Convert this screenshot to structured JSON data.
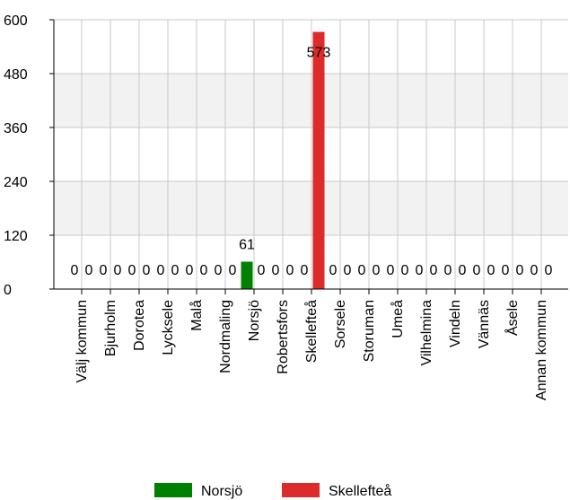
{
  "chart_data": {
    "type": "bar",
    "title": "",
    "xlabel": "",
    "ylabel": "",
    "ylim": [
      0,
      600
    ],
    "yticks": [
      0,
      120,
      240,
      360,
      480,
      600
    ],
    "grid": true,
    "legend_position": "bottom",
    "categories": [
      "Välj kommun",
      "Bjurholm",
      "Dorotea",
      "Lycksele",
      "Malå",
      "Nordmaling",
      "Norsjö",
      "Robertsfors",
      "Skellefteå",
      "Sorsele",
      "Storuman",
      "Umeå",
      "Vilhelmina",
      "Vindeln",
      "Vännäs",
      "Åsele",
      "Annan kommun"
    ],
    "series": [
      {
        "name": "Norsjö",
        "color": "#008000",
        "values": [
          0,
          0,
          0,
          0,
          0,
          0,
          61,
          0,
          0,
          0,
          0,
          0,
          0,
          0,
          0,
          0,
          0
        ]
      },
      {
        "name": "Skellefteå",
        "color": "#dd2a2a",
        "values": [
          0,
          0,
          0,
          0,
          0,
          0,
          0,
          0,
          573,
          0,
          0,
          0,
          0,
          0,
          0,
          0,
          0
        ]
      }
    ],
    "band_color": "#f2f2f2",
    "grid_color": "#c8c8c8"
  }
}
